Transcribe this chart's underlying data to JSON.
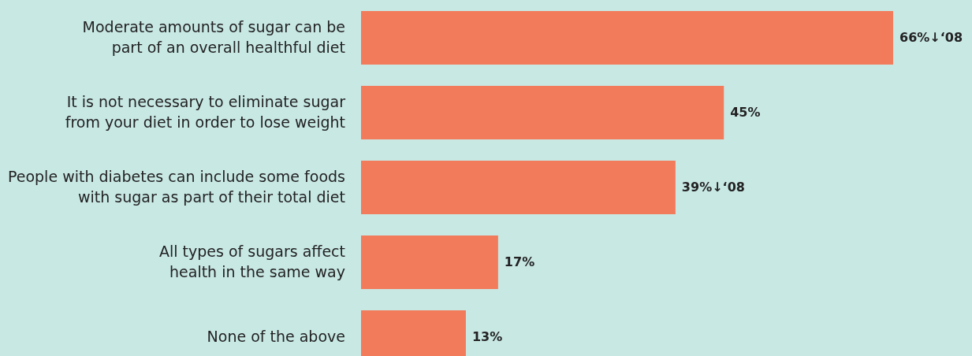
{
  "chart_data": {
    "type": "bar",
    "orientation": "horizontal",
    "categories": [
      "Moderate amounts of sugar can be part of an overall healthful diet",
      "It is not necessary to eliminate sugar from your diet in order to lose weight",
      "People with diabetes can include some foods with sugar as part of their total diet",
      "All types of sugars affect health in the same way",
      "None of the above"
    ],
    "values": [
      66,
      45,
      39,
      17,
      13
    ],
    "value_labels": [
      "66%↓‘08",
      "45%",
      "39%↓‘08",
      "17%",
      "13%"
    ],
    "color": "#f27b5c",
    "grid": false,
    "legend": false
  }
}
